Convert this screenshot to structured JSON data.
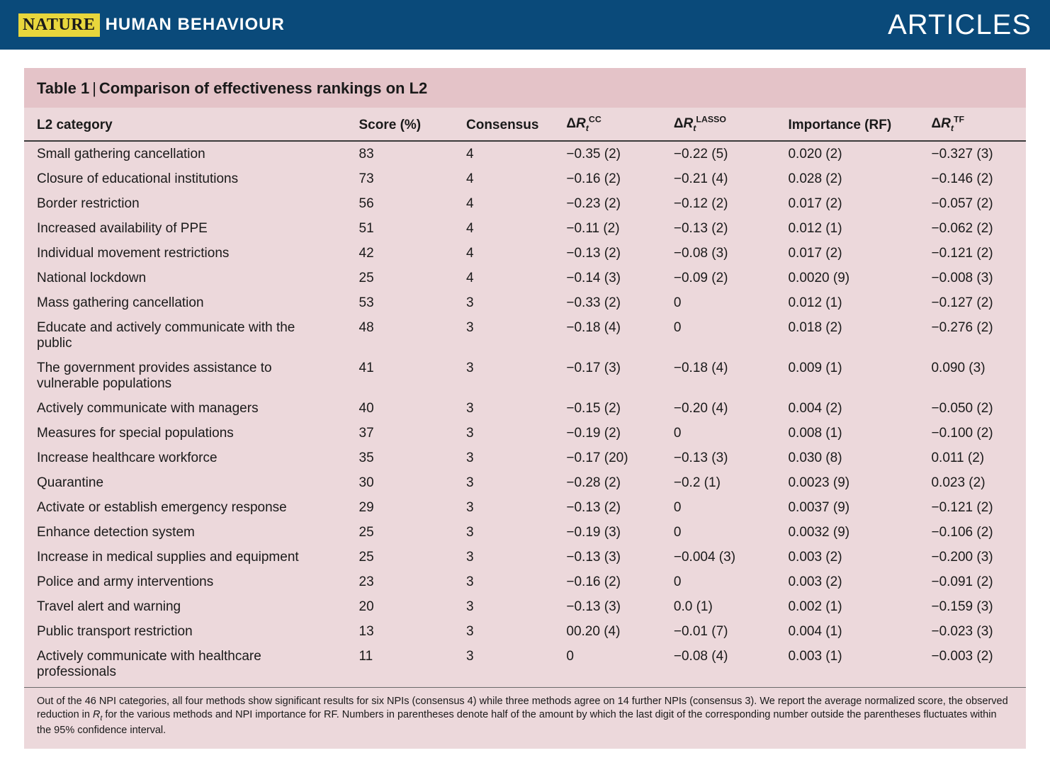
{
  "masthead": {
    "brand_mark": "NATURE",
    "brand_sub": "HUMAN BEHAVIOUR",
    "section": "ARTICLES",
    "bg_color": "#0a4a7a",
    "mark_bg": "#e8d63c"
  },
  "table": {
    "bg_color": "#ecd8db",
    "title_bg": "#e4c3c8",
    "title_label": "Table 1",
    "title_desc": "Comparison of effectiveness rankings on L2",
    "columns": {
      "category": "L2 category",
      "score": "Score (%)",
      "consensus": "Consensus",
      "cc_prefix": "Δ",
      "cc_base": "R",
      "cc_sub": "t",
      "cc_sup": "CC",
      "lasso_prefix": "Δ",
      "lasso_base": "R",
      "lasso_sub": "t",
      "lasso_sup": "LASSO",
      "rf": "Importance (RF)",
      "tf_prefix": "Δ",
      "tf_base": "R",
      "tf_sub": "t",
      "tf_sup": "TF"
    },
    "rows": [
      {
        "cat": "Small gathering cancellation",
        "score": "83",
        "cons": "4",
        "cc": "−0.35 (2)",
        "lasso": "−0.22 (5)",
        "rf": "0.020 (2)",
        "tf": "−0.327 (3)"
      },
      {
        "cat": "Closure of educational institutions",
        "score": "73",
        "cons": "4",
        "cc": "−0.16 (2)",
        "lasso": "−0.21 (4)",
        "rf": "0.028 (2)",
        "tf": "−0.146 (2)"
      },
      {
        "cat": "Border restriction",
        "score": "56",
        "cons": "4",
        "cc": "−0.23 (2)",
        "lasso": "−0.12 (2)",
        "rf": "0.017 (2)",
        "tf": "−0.057 (2)"
      },
      {
        "cat": "Increased availability of PPE",
        "score": "51",
        "cons": "4",
        "cc": "−0.11 (2)",
        "lasso": "−0.13 (2)",
        "rf": "0.012 (1)",
        "tf": "−0.062 (2)"
      },
      {
        "cat": "Individual movement restrictions",
        "score": "42",
        "cons": "4",
        "cc": "−0.13 (2)",
        "lasso": "−0.08 (3)",
        "rf": "0.017 (2)",
        "tf": "−0.121 (2)"
      },
      {
        "cat": "National lockdown",
        "score": "25",
        "cons": "4",
        "cc": "−0.14 (3)",
        "lasso": "−0.09 (2)",
        "rf": "0.0020 (9)",
        "tf": "−0.008 (3)"
      },
      {
        "cat": "Mass gathering cancellation",
        "score": "53",
        "cons": "3",
        "cc": "−0.33 (2)",
        "lasso": "0",
        "rf": "0.012 (1)",
        "tf": "−0.127 (2)"
      },
      {
        "cat": "Educate and actively communicate with the public",
        "score": "48",
        "cons": "3",
        "cc": "−0.18 (4)",
        "lasso": "0",
        "rf": "0.018 (2)",
        "tf": "−0.276 (2)"
      },
      {
        "cat": "The government provides assistance to vulnerable populations",
        "score": "41",
        "cons": "3",
        "cc": "−0.17 (3)",
        "lasso": "−0.18 (4)",
        "rf": "0.009 (1)",
        "tf": "0.090 (3)"
      },
      {
        "cat": "Actively communicate with managers",
        "score": "40",
        "cons": "3",
        "cc": "−0.15 (2)",
        "lasso": "−0.20 (4)",
        "rf": "0.004 (2)",
        "tf": "−0.050 (2)"
      },
      {
        "cat": "Measures for special populations",
        "score": "37",
        "cons": "3",
        "cc": "−0.19 (2)",
        "lasso": "0",
        "rf": "0.008 (1)",
        "tf": "−0.100 (2)"
      },
      {
        "cat": "Increase healthcare workforce",
        "score": "35",
        "cons": "3",
        "cc": "−0.17 (20)",
        "lasso": "−0.13 (3)",
        "rf": "0.030 (8)",
        "tf": "0.011 (2)"
      },
      {
        "cat": "Quarantine",
        "score": "30",
        "cons": "3",
        "cc": "−0.28 (2)",
        "lasso": "−0.2 (1)",
        "rf": "0.0023 (9)",
        "tf": "0.023 (2)"
      },
      {
        "cat": "Activate or establish emergency response",
        "score": "29",
        "cons": "3",
        "cc": "−0.13 (2)",
        "lasso": "0",
        "rf": "0.0037 (9)",
        "tf": "−0.121 (2)"
      },
      {
        "cat": "Enhance detection system",
        "score": "25",
        "cons": "3",
        "cc": "−0.19 (3)",
        "lasso": "0",
        "rf": "0.0032 (9)",
        "tf": "−0.106 (2)"
      },
      {
        "cat": "Increase in medical supplies and equipment",
        "score": "25",
        "cons": "3",
        "cc": "−0.13 (3)",
        "lasso": "−0.004 (3)",
        "rf": "0.003 (2)",
        "tf": "−0.200 (3)"
      },
      {
        "cat": "Police and army interventions",
        "score": "23",
        "cons": "3",
        "cc": "−0.16 (2)",
        "lasso": "0",
        "rf": "0.003 (2)",
        "tf": "−0.091 (2)"
      },
      {
        "cat": "Travel alert and warning",
        "score": "20",
        "cons": "3",
        "cc": "−0.13 (3)",
        "lasso": "0.0 (1)",
        "rf": "0.002 (1)",
        "tf": "−0.159 (3)"
      },
      {
        "cat": "Public transport restriction",
        "score": "13",
        "cons": "3",
        "cc": "00.20 (4)",
        "lasso": "−0.01 (7)",
        "rf": "0.004 (1)",
        "tf": "−0.023 (3)"
      },
      {
        "cat": "Actively communicate with healthcare professionals",
        "score": "11",
        "cons": "3",
        "cc": "0",
        "lasso": "−0.08 (4)",
        "rf": "0.003 (1)",
        "tf": "−0.003 (2)"
      }
    ],
    "footnote_a": "Out of the 46 NPI categories, all four methods show significant results for six NPIs (consensus 4) while three methods agree on 14 further NPIs (consensus 3). We report the average normalized score, the observed reduction in ",
    "footnote_r": "R",
    "footnote_t": "t",
    "footnote_b": " for the various methods and NPI importance for RF. Numbers in parentheses denote half of the amount by which the last digit of the corresponding number outside the parentheses fluctuates within the 95% confidence interval."
  }
}
